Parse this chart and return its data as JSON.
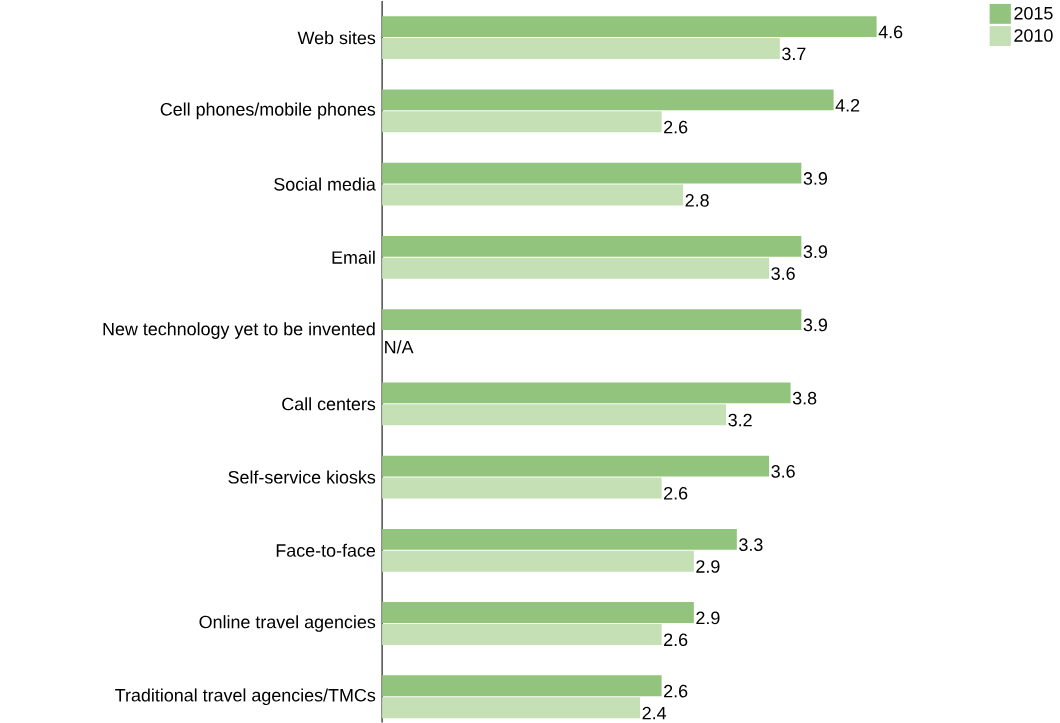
{
  "chart_data": {
    "type": "bar",
    "orientation": "horizontal",
    "categories": [
      "Web sites",
      "Cell phones/mobile phones",
      "Social media",
      "Email",
      "New technology yet to be invented",
      "Call centers",
      "Self-service kiosks",
      "Face-to-face",
      "Online travel agencies",
      "Traditional travel agencies/TMCs"
    ],
    "series": [
      {
        "name": "2015",
        "color": "#93c47d",
        "values": [
          4.6,
          4.2,
          3.9,
          3.9,
          3.9,
          3.8,
          3.6,
          3.3,
          2.9,
          2.6
        ],
        "value_labels": [
          "4.6",
          "4.2",
          "3.9",
          "3.9",
          "3.9",
          "3.8",
          "3.6",
          "3.3",
          "2.9",
          "2.6"
        ]
      },
      {
        "name": "2010",
        "color": "#c5e0b4",
        "values": [
          3.7,
          2.6,
          2.8,
          3.6,
          null,
          3.2,
          2.6,
          2.9,
          2.6,
          2.4
        ],
        "value_labels": [
          "3.7",
          "2.6",
          "2.8",
          "3.6",
          "N/A",
          "3.2",
          "2.6",
          "2.9",
          "2.6",
          "2.4"
        ]
      }
    ],
    "legend": "top right"
  }
}
